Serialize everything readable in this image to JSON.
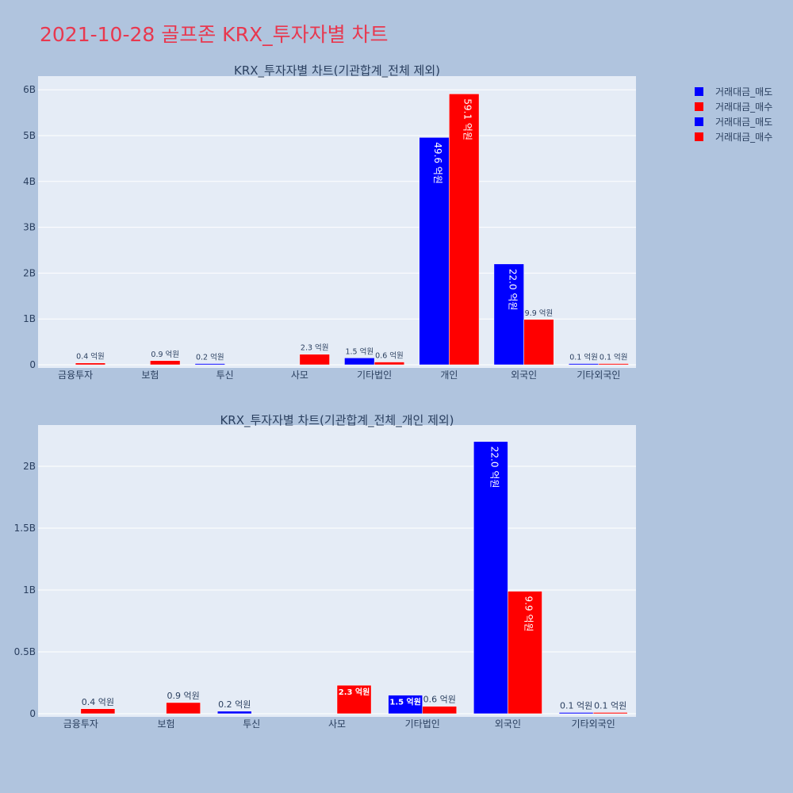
{
  "title": "2021-10-28 골프존 KRX_투자자별 차트",
  "colors": {
    "sell": "#0000ff",
    "buy": "#ff0000",
    "background": "#b0c4de",
    "plot_bg": "#e5ecf6",
    "title": "#e8384f"
  },
  "legend": [
    {
      "label": "거래대금_매도",
      "color": "#0000ff"
    },
    {
      "label": "거래대금_매수",
      "color": "#ff0000"
    },
    {
      "label": "거래대금_매도",
      "color": "#0000ff"
    },
    {
      "label": "거래대금_매수",
      "color": "#ff0000"
    }
  ],
  "chart_data": [
    {
      "type": "bar",
      "title": "KRX_투자자별 차트(기관합계_전체 제외)",
      "categories": [
        "금융투자",
        "보험",
        "투신",
        "사모",
        "기타법인",
        "개인",
        "외국인",
        "기타외국인"
      ],
      "ylim": [
        0,
        6.3
      ],
      "y_unit": "B",
      "yticks": [
        "0",
        "1B",
        "2B",
        "3B",
        "4B",
        "5B",
        "6B"
      ],
      "series": [
        {
          "name": "거래대금_매도",
          "color": "#0000ff",
          "values": [
            0,
            0,
            0.02,
            0,
            0.15,
            4.96,
            2.2,
            0.01
          ],
          "labels": [
            "",
            "",
            "0.2 억원",
            "",
            "1.5 억원",
            "49.6 억원",
            "22.0 억원",
            "0.1 억원"
          ]
        },
        {
          "name": "거래대금_매수",
          "color": "#ff0000",
          "values": [
            0.04,
            0.09,
            0,
            0.23,
            0.06,
            5.91,
            0.99,
            0.01
          ],
          "labels": [
            "0.4 억원",
            "0.9 억원",
            "",
            "2.3 억원",
            "0.6 억원",
            "59.1 억원",
            "9.9 억원",
            "0.1 억원"
          ]
        }
      ]
    },
    {
      "type": "bar",
      "title": "KRX_투자자별 차트(기관합계_전체_개인 제외)",
      "categories": [
        "금융투자",
        "보험",
        "투신",
        "사모",
        "기타법인",
        "외국인",
        "기타외국인"
      ],
      "ylim": [
        0,
        2.32
      ],
      "y_unit": "B",
      "yticks": [
        "0",
        "0.5B",
        "1B",
        "1.5B",
        "2B"
      ],
      "series": [
        {
          "name": "거래대금_매도",
          "color": "#0000ff",
          "values": [
            0,
            0,
            0.02,
            0,
            0.15,
            2.2,
            0.01
          ],
          "labels": [
            "",
            "",
            "0.2 억원",
            "",
            "1.5 억원",
            "22.0 억원",
            "0.1 억원"
          ]
        },
        {
          "name": "거래대금_매수",
          "color": "#ff0000",
          "values": [
            0.04,
            0.09,
            0,
            0.23,
            0.06,
            0.99,
            0.01
          ],
          "labels": [
            "0.4 억원",
            "0.9 억원",
            "",
            "2.3 억원",
            "0.6 억원",
            "9.9 억원",
            "0.1 억원"
          ]
        }
      ]
    }
  ]
}
